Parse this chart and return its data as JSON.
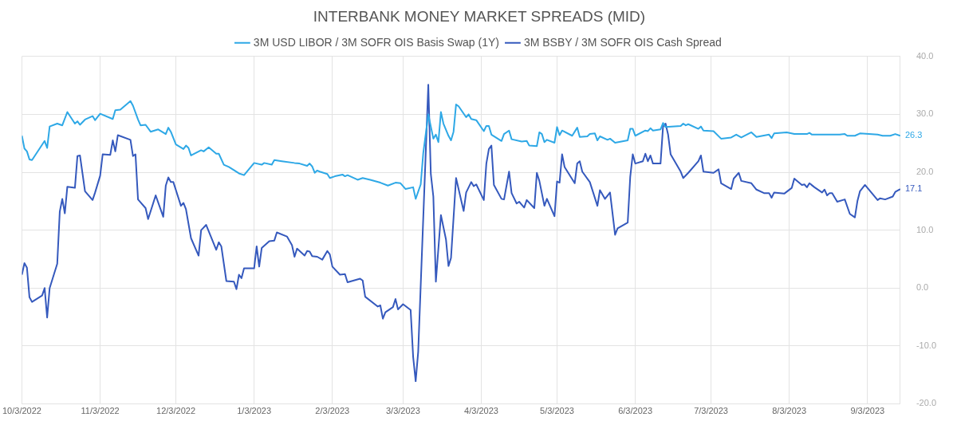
{
  "chart_data": {
    "type": "line",
    "title": "INTERBANK MONEY MARKET SPREADS (MID)",
    "xlim": [
      "2022-10-03",
      "2023-09-16"
    ],
    "xticks": [
      {
        "value": "2022-10-03",
        "label": "10/3/2022"
      },
      {
        "value": "2022-11-03",
        "label": "11/3/2022"
      },
      {
        "value": "2022-12-03",
        "label": "12/3/2022"
      },
      {
        "value": "2023-01-03",
        "label": "1/3/2023"
      },
      {
        "value": "2023-02-03",
        "label": "2/3/2023"
      },
      {
        "value": "2023-03-03",
        "label": "3/3/2023"
      },
      {
        "value": "2023-04-03",
        "label": "4/3/2023"
      },
      {
        "value": "2023-05-03",
        "label": "5/3/2023"
      },
      {
        "value": "2023-06-03",
        "label": "6/3/2023"
      },
      {
        "value": "2023-07-03",
        "label": "7/3/2023"
      },
      {
        "value": "2023-08-03",
        "label": "8/3/2023"
      },
      {
        "value": "2023-09-03",
        "label": "9/3/2023"
      }
    ],
    "ylim": [
      -20,
      40
    ],
    "yticks": [
      {
        "value": -20,
        "label": "-20.0"
      },
      {
        "value": -10,
        "label": "-10.0"
      },
      {
        "value": 0,
        "label": "0.0"
      },
      {
        "value": 10,
        "label": "10.0"
      },
      {
        "value": 20,
        "label": "20.0"
      },
      {
        "value": 30,
        "label": "30.0"
      },
      {
        "value": 40,
        "label": "40.0"
      }
    ],
    "grid": true,
    "legend": "top",
    "series": [
      {
        "name": "3M USD LIBOR / 3M SOFR OIS Basis Swap (1Y)",
        "color": "#2ea8e6",
        "x": [
          "2022-10-03",
          "2022-10-04",
          "2022-10-05",
          "2022-10-06",
          "2022-10-07",
          "2022-10-12",
          "2022-10-13",
          "2022-10-14",
          "2022-10-17",
          "2022-10-19",
          "2022-10-21",
          "2022-10-24",
          "2022-10-25",
          "2022-10-26",
          "2022-10-28",
          "2022-10-31",
          "2022-11-01",
          "2022-11-03",
          "2022-11-08",
          "2022-11-09",
          "2022-11-11",
          "2022-11-15",
          "2022-11-16",
          "2022-11-18",
          "2022-11-19",
          "2022-11-21",
          "2022-11-23",
          "2022-11-26",
          "2022-11-29",
          "2022-11-30",
          "2022-12-01",
          "2022-12-03",
          "2022-12-06",
          "2022-12-07",
          "2022-12-08",
          "2022-12-09",
          "2022-12-13",
          "2022-12-14",
          "2022-12-16",
          "2022-12-19",
          "2022-12-20",
          "2022-12-22",
          "2022-12-24",
          "2022-12-28",
          "2022-12-30",
          "2023-01-03",
          "2023-01-06",
          "2023-01-07",
          "2023-01-10",
          "2023-01-11",
          "2023-01-14",
          "2023-01-19",
          "2023-01-21",
          "2023-01-24",
          "2023-01-25",
          "2023-01-26",
          "2023-01-27",
          "2023-01-28",
          "2023-01-29",
          "2023-02-01",
          "2023-02-02",
          "2023-02-04",
          "2023-02-07",
          "2023-02-08",
          "2023-02-09",
          "2023-02-13",
          "2023-02-15",
          "2023-02-18",
          "2023-02-22",
          "2023-02-25",
          "2023-02-28",
          "2023-03-02",
          "2023-03-04",
          "2023-03-07",
          "2023-03-08",
          "2023-03-10",
          "2023-03-11",
          "2023-03-13",
          "2023-03-15",
          "2023-03-16",
          "2023-03-17",
          "2023-03-18",
          "2023-03-19",
          "2023-03-21",
          "2023-03-22",
          "2023-03-23",
          "2023-03-24",
          "2023-03-25",
          "2023-03-28",
          "2023-03-29",
          "2023-03-30",
          "2023-04-01",
          "2023-04-04",
          "2023-04-05",
          "2023-04-06",
          "2023-04-07",
          "2023-04-11",
          "2023-04-12",
          "2023-04-14",
          "2023-04-15",
          "2023-04-19",
          "2023-04-21",
          "2023-04-22",
          "2023-04-25",
          "2023-04-26",
          "2023-04-27",
          "2023-04-28",
          "2023-04-29",
          "2023-05-02",
          "2023-05-03",
          "2023-05-04",
          "2023-05-05",
          "2023-05-09",
          "2023-05-11",
          "2023-05-12",
          "2023-05-15",
          "2023-05-16",
          "2023-05-18",
          "2023-05-19",
          "2023-05-20",
          "2023-05-23",
          "2023-05-24",
          "2023-05-26",
          "2023-05-31",
          "2023-06-01",
          "2023-06-02",
          "2023-06-03",
          "2023-06-07",
          "2023-06-08",
          "2023-06-09",
          "2023-06-10",
          "2023-06-13",
          "2023-06-14",
          "2023-06-15",
          "2023-06-21",
          "2023-06-22",
          "2023-06-23",
          "2023-06-24",
          "2023-06-28",
          "2023-06-29",
          "2023-06-30",
          "2023-07-04",
          "2023-07-07",
          "2023-07-11",
          "2023-07-13",
          "2023-07-15",
          "2023-07-19",
          "2023-07-21",
          "2023-07-26",
          "2023-07-27",
          "2023-07-28",
          "2023-08-02",
          "2023-08-05",
          "2023-08-10",
          "2023-08-11",
          "2023-08-12",
          "2023-08-17",
          "2023-08-23",
          "2023-08-25",
          "2023-08-26",
          "2023-08-29",
          "2023-08-31",
          "2023-09-07",
          "2023-09-09",
          "2023-09-12",
          "2023-09-14",
          "2023-09-16"
        ],
        "values": [
          26.3,
          24.1,
          23.6,
          22.2,
          22.1,
          25.4,
          24.2,
          27.9,
          28.4,
          28.1,
          30.4,
          28.4,
          28.8,
          28.2,
          29.1,
          29.7,
          29.0,
          30.1,
          29.2,
          30.7,
          30.8,
          32.3,
          31.5,
          29.1,
          28.1,
          28.2,
          27.0,
          27.4,
          26.6,
          27.7,
          27.0,
          24.8,
          24.0,
          24.6,
          24.2,
          22.9,
          23.8,
          23.6,
          24.3,
          23.2,
          23.2,
          21.3,
          20.9,
          19.8,
          19.5,
          21.6,
          21.3,
          21.6,
          21.3,
          22.1,
          21.9,
          21.6,
          21.5,
          21.1,
          21.5,
          21.0,
          19.9,
          20.3,
          20.1,
          19.7,
          19.0,
          19.3,
          19.6,
          19.3,
          19.5,
          18.7,
          19.0,
          18.7,
          18.2,
          17.7,
          18.2,
          18.1,
          17.1,
          17.4,
          15.4,
          17.9,
          23.3,
          30.0,
          25.8,
          26.5,
          25.2,
          30.4,
          28.4,
          26.3,
          25.5,
          27.0,
          31.7,
          31.4,
          29.5,
          30.0,
          29.2,
          29.0,
          27.1,
          28.0,
          28.0,
          26.5,
          25.4,
          26.6,
          27.2,
          25.7,
          25.3,
          25.4,
          24.6,
          24.5,
          26.9,
          26.6,
          25.2,
          25.6,
          25.1,
          27.8,
          26.4,
          27.2,
          26.3,
          27.7,
          26.1,
          26.2,
          26.6,
          26.7,
          25.5,
          26.2,
          25.6,
          25.8,
          25.1,
          25.5,
          27.5,
          27.5,
          26.3,
          27.2,
          27.1,
          27.6,
          27.2,
          27.4,
          28.5,
          27.8,
          28.0,
          28.4,
          28.1,
          28.3,
          27.5,
          27.9,
          27.2,
          27.1,
          25.8,
          26.0,
          26.5,
          26.0,
          26.9,
          26.1,
          26.5,
          25.9,
          26.7,
          26.9,
          26.6,
          26.6,
          26.8,
          26.5,
          26.5,
          26.5,
          26.6,
          26.3,
          26.3,
          26.7,
          26.5,
          26.3,
          26.3,
          26.6,
          26.3
        ],
        "value_labels": [
          null,
          null,
          null,
          null,
          null,
          null,
          null,
          null,
          null,
          null,
          null,
          null,
          null,
          null,
          null,
          null,
          null,
          null,
          null,
          null,
          null,
          null,
          null,
          null,
          null,
          null,
          null,
          null,
          null,
          null,
          null,
          null,
          null,
          null,
          null,
          null,
          null,
          null,
          null,
          null,
          null,
          null,
          null,
          null,
          null,
          null,
          null,
          null,
          null,
          null,
          null,
          null,
          null,
          null,
          null,
          null,
          null,
          null,
          null,
          null,
          null,
          null,
          null,
          null,
          null,
          null,
          null,
          null,
          null,
          null,
          null,
          null,
          null,
          null,
          null,
          null,
          null,
          null,
          null,
          null,
          null,
          null,
          null,
          null,
          null,
          null,
          null,
          null,
          null,
          null,
          null,
          null,
          null,
          null,
          null,
          null,
          null,
          null,
          null,
          null,
          null,
          null,
          null,
          null,
          null,
          null,
          null,
          null,
          null,
          null,
          null,
          null,
          null,
          null,
          null,
          null,
          null,
          null,
          null,
          null,
          null,
          null,
          null,
          null,
          null,
          null,
          null,
          null,
          null,
          null,
          null,
          null,
          null,
          null,
          null,
          null,
          null,
          null,
          null,
          null,
          null,
          null,
          null,
          null,
          null,
          null,
          null,
          null,
          null,
          null,
          null,
          null,
          null,
          null,
          null,
          null,
          null,
          null,
          null,
          null,
          null,
          null,
          null,
          null,
          null,
          null,
          "26.3"
        ]
      },
      {
        "name": "3M BSBY / 3M SOFR OIS Cash Spread",
        "color": "#3559bd",
        "x": [
          "2022-10-03",
          "2022-10-04",
          "2022-10-05",
          "2022-10-06",
          "2022-10-07",
          "2022-10-11",
          "2022-10-12",
          "2022-10-13",
          "2022-10-14",
          "2022-10-17",
          "2022-10-18",
          "2022-10-19",
          "2022-10-20",
          "2022-10-21",
          "2022-10-24",
          "2022-10-25",
          "2022-10-26",
          "2022-10-28",
          "2022-10-31",
          "2022-11-01",
          "2022-11-03",
          "2022-11-04",
          "2022-11-07",
          "2022-11-08",
          "2022-11-09",
          "2022-11-10",
          "2022-11-15",
          "2022-11-16",
          "2022-11-17",
          "2022-11-18",
          "2022-11-21",
          "2022-11-22",
          "2022-11-25",
          "2022-11-28",
          "2022-11-29",
          "2022-11-30",
          "2022-12-01",
          "2022-12-02",
          "2022-12-05",
          "2022-12-06",
          "2022-12-07",
          "2022-12-09",
          "2022-12-12",
          "2022-12-13",
          "2022-12-15",
          "2022-12-19",
          "2022-12-20",
          "2022-12-21",
          "2022-12-23",
          "2022-12-26",
          "2022-12-27",
          "2022-12-28",
          "2022-12-29",
          "2022-12-30",
          "2023-01-03",
          "2023-01-04",
          "2023-01-05",
          "2023-01-06",
          "2023-01-09",
          "2023-01-11",
          "2023-01-12",
          "2023-01-16",
          "2023-01-18",
          "2023-01-19",
          "2023-01-20",
          "2023-01-23",
          "2023-01-24",
          "2023-01-25",
          "2023-01-26",
          "2023-01-28",
          "2023-01-30",
          "2023-02-01",
          "2023-02-02",
          "2023-02-03",
          "2023-02-06",
          "2023-02-08",
          "2023-02-09",
          "2023-02-14",
          "2023-02-15",
          "2023-02-16",
          "2023-02-21",
          "2023-02-22",
          "2023-02-23",
          "2023-02-24",
          "2023-02-27",
          "2023-02-28",
          "2023-03-01",
          "2023-03-03",
          "2023-03-06",
          "2023-03-07",
          "2023-03-08",
          "2023-03-09",
          "2023-03-13",
          "2023-03-14",
          "2023-03-15",
          "2023-03-16",
          "2023-03-18",
          "2023-03-20",
          "2023-03-21",
          "2023-03-22",
          "2023-03-24",
          "2023-03-27",
          "2023-03-28",
          "2023-03-30",
          "2023-03-31",
          "2023-04-01",
          "2023-04-04",
          "2023-04-05",
          "2023-04-06",
          "2023-04-07",
          "2023-04-08",
          "2023-04-11",
          "2023-04-12",
          "2023-04-14",
          "2023-04-15",
          "2023-04-17",
          "2023-04-18",
          "2023-04-20",
          "2023-04-21",
          "2023-04-24",
          "2023-04-25",
          "2023-04-26",
          "2023-04-28",
          "2023-04-29",
          "2023-05-02",
          "2023-05-03",
          "2023-05-04",
          "2023-05-05",
          "2023-05-06",
          "2023-05-10",
          "2023-05-11",
          "2023-05-12",
          "2023-05-13",
          "2023-05-16",
          "2023-05-19",
          "2023-05-20",
          "2023-05-22",
          "2023-05-24",
          "2023-05-26",
          "2023-05-27",
          "2023-05-31",
          "2023-06-01",
          "2023-06-02",
          "2023-06-03",
          "2023-06-06",
          "2023-06-07",
          "2023-06-08",
          "2023-06-09",
          "2023-06-10",
          "2023-06-13",
          "2023-06-14",
          "2023-06-15",
          "2023-06-16",
          "2023-06-17",
          "2023-06-21",
          "2023-06-22",
          "2023-06-24",
          "2023-06-28",
          "2023-06-29",
          "2023-06-30",
          "2023-07-04",
          "2023-07-06",
          "2023-07-07",
          "2023-07-11",
          "2023-07-12",
          "2023-07-14",
          "2023-07-15",
          "2023-07-19",
          "2023-07-21",
          "2023-07-24",
          "2023-07-26",
          "2023-07-27",
          "2023-07-28",
          "2023-08-01",
          "2023-08-04",
          "2023-08-05",
          "2023-08-08",
          "2023-08-09",
          "2023-08-10",
          "2023-08-11",
          "2023-08-13",
          "2023-08-16",
          "2023-08-17",
          "2023-08-18",
          "2023-08-19",
          "2023-08-20",
          "2023-08-22",
          "2023-08-25",
          "2023-08-27",
          "2023-08-29",
          "2023-08-30",
          "2023-08-31",
          "2023-09-02",
          "2023-09-07",
          "2023-09-08",
          "2023-09-10",
          "2023-09-13",
          "2023-09-14",
          "2023-09-16"
        ],
        "values": [
          2.3,
          4.3,
          3.5,
          -1.6,
          -2.4,
          -1.3,
          0.0,
          -5.1,
          0.0,
          4.2,
          13.2,
          15.4,
          12.9,
          17.5,
          17.3,
          22.8,
          22.9,
          16.7,
          15.2,
          16.5,
          19.4,
          23.1,
          23.0,
          25.5,
          23.6,
          26.4,
          25.6,
          22.8,
          23.1,
          15.3,
          13.8,
          11.9,
          16.0,
          12.3,
          17.7,
          19.1,
          18.3,
          18.3,
          14.2,
          14.7,
          13.6,
          8.6,
          5.6,
          10.0,
          10.9,
          6.6,
          7.9,
          7.2,
          1.2,
          1.1,
          -0.2,
          2.3,
          1.7,
          3.4,
          3.4,
          7.2,
          3.7,
          6.9,
          8.1,
          8.2,
          9.6,
          8.9,
          7.4,
          5.4,
          6.8,
          5.6,
          6.4,
          6.3,
          5.5,
          5.4,
          4.9,
          6.4,
          5.8,
          3.7,
          2.3,
          2.4,
          1.0,
          1.6,
          1.3,
          -1.5,
          -3.2,
          -3.0,
          -5.3,
          -4.2,
          -3.3,
          -1.9,
          -3.7,
          -2.8,
          -3.8,
          -11.9,
          -16.1,
          -11.0,
          35.1,
          19.7,
          15.8,
          1.1,
          12.6,
          8.4,
          3.8,
          5.2,
          19.0,
          13.3,
          16.5,
          18.3,
          17.6,
          17.9,
          15.2,
          21.5,
          24.0,
          24.6,
          17.8,
          15.4,
          15.3,
          20.1,
          16.4,
          14.6,
          14.9,
          13.9,
          15.2,
          13.8,
          19.9,
          18.5,
          14.2,
          15.4,
          12.4,
          18.4,
          18.2,
          23.1,
          20.9,
          18.1,
          21.5,
          21.9,
          20.1,
          18.3,
          14.2,
          16.9,
          15.4,
          16.5,
          9.2,
          10.3,
          11.3,
          19.2,
          23.1,
          21.5,
          21.9,
          23.2,
          21.9,
          22.9,
          21.5,
          21.5,
          27.9,
          28.4,
          26.5,
          23.1,
          20.1,
          19.0,
          19.9,
          21.9,
          22.9,
          20.1,
          19.9,
          20.5,
          18.1,
          17.1,
          18.9,
          19.9,
          18.5,
          18.1,
          17.0,
          16.4,
          16.4,
          15.6,
          16.5,
          16.3,
          17.3,
          18.9,
          17.8,
          17.9,
          17.4,
          18.1,
          17.4,
          16.5,
          17.0,
          16.0,
          16.4,
          16.4,
          14.9,
          15.3,
          12.8,
          12.2,
          15.0,
          16.7,
          17.8,
          15.2,
          15.5,
          15.3,
          15.8,
          16.6,
          17.1
        ],
        "value_labels": [
          null,
          null,
          null,
          null,
          null,
          null,
          null,
          null,
          null,
          null,
          null,
          null,
          null,
          null,
          null,
          null,
          null,
          null,
          null,
          null,
          null,
          null,
          null,
          null,
          null,
          null,
          null,
          null,
          null,
          null,
          null,
          null,
          null,
          null,
          null,
          null,
          null,
          null,
          null,
          null,
          null,
          null,
          null,
          null,
          null,
          null,
          null,
          null,
          null,
          null,
          null,
          null,
          null,
          null,
          null,
          null,
          null,
          null,
          null,
          null,
          null,
          null,
          null,
          null,
          null,
          null,
          null,
          null,
          null,
          null,
          null,
          null,
          null,
          null,
          null,
          null,
          null,
          null,
          null,
          null,
          null,
          null,
          null,
          null,
          null,
          null,
          null,
          null,
          null,
          null,
          null,
          null,
          null,
          null,
          null,
          null,
          null,
          null,
          null,
          null,
          null,
          null,
          null,
          null,
          null,
          null,
          null,
          null,
          null,
          null,
          null,
          null,
          null,
          null,
          null,
          null,
          null,
          null,
          null,
          null,
          null,
          null,
          null,
          null,
          null,
          null,
          null,
          null,
          null,
          null,
          null,
          null,
          null,
          null,
          null,
          null,
          null,
          null,
          null,
          null,
          null,
          null,
          null,
          null,
          null,
          null,
          null,
          null,
          null,
          null,
          null,
          null,
          null,
          null,
          null,
          null,
          null,
          null,
          null,
          null,
          null,
          null,
          null,
          null,
          null,
          null,
          null,
          null,
          null,
          null,
          null,
          null,
          null,
          null,
          null,
          null,
          null,
          null,
          null,
          null,
          null,
          null,
          null,
          null,
          null,
          null,
          null,
          null,
          null,
          null,
          null,
          null,
          null,
          null,
          null,
          null,
          null,
          null,
          "17.1"
        ]
      }
    ]
  }
}
